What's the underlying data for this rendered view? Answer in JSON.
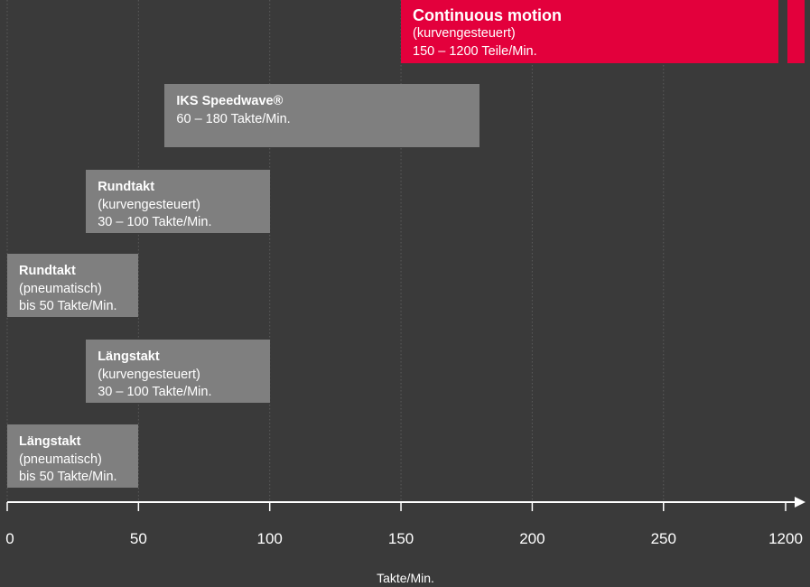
{
  "chart_data": {
    "type": "bar",
    "orientation": "horizontal-range",
    "xlabel": "Takte/Min.",
    "x_ticks": [
      "0",
      "50",
      "100",
      "150",
      "200",
      "250",
      "1200"
    ],
    "grid": true,
    "axis_break": "between 250 and 1200",
    "colors": {
      "background": "#3a3a3a",
      "bar": "#7f7f7f",
      "highlight": "#e3003c",
      "grid": "#5a5a5a",
      "axis": "#ffffff",
      "text": "#ffffff"
    },
    "bars": [
      {
        "id": "bar-continuous-motion",
        "lines": [
          "Continuous motion",
          "(kurvengesteuert)",
          "150 – 1200 Teile/Min."
        ],
        "start": 150,
        "end": 1200,
        "highlight": true
      },
      {
        "id": "bar-iks-speedwave",
        "lines": [
          "IKS Speedwave®",
          "60 – 180 Takte/Min."
        ],
        "start": 60,
        "end": 180,
        "highlight": false
      },
      {
        "id": "bar-rundtakt-kurven",
        "lines": [
          "Rundtakt",
          "(kurvengesteuert)",
          "30 – 100 Takte/Min."
        ],
        "start": 30,
        "end": 100,
        "highlight": false
      },
      {
        "id": "bar-rundtakt-pneu",
        "lines": [
          "Rundtakt",
          "(pneumatisch)",
          "bis 50 Takte/Min."
        ],
        "start": 0,
        "end": 50,
        "highlight": false
      },
      {
        "id": "bar-laengstakt-kurven",
        "lines": [
          "Längstakt",
          "(kurvengesteuert)",
          "30 – 100 Takte/Min."
        ],
        "start": 30,
        "end": 100,
        "highlight": false
      },
      {
        "id": "bar-laengstakt-pneu",
        "lines": [
          "Längstakt",
          "(pneumatisch)",
          "bis 50 Takte/Min."
        ],
        "start": 0,
        "end": 50,
        "highlight": false
      }
    ]
  }
}
